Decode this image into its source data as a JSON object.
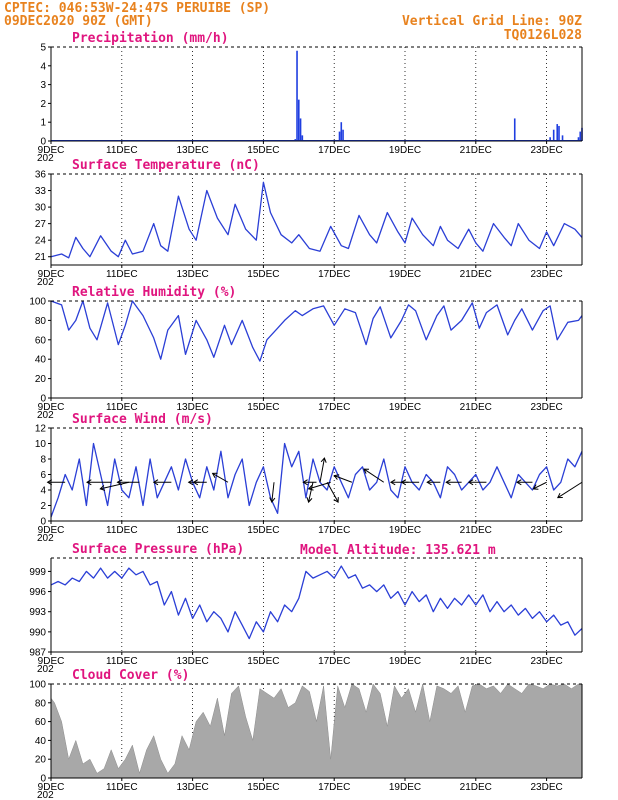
{
  "header": {
    "station": "CPTEC:   046:53W-24:47S  PERUIBE (SP)",
    "run": "09DEC2020 90Z (GMT)",
    "grid_line": "Vertical Grid Line: 90Z",
    "code": "TQ0126L028",
    "model_altitude": "Model Altitude: 135.621  m"
  },
  "x_ticks": [
    "9DEC",
    "11DEC",
    "13DEC",
    "15DEC",
    "17DEC",
    "19DEC",
    "21DEC",
    "23DEC"
  ],
  "year_stub": "202",
  "colors": {
    "line": "#2b3fd6",
    "bar": "#1f3ee0",
    "cloud": "#a8a8a8",
    "title": "#e0157f",
    "header": "#e8821e"
  },
  "chart_data": [
    {
      "id": "precip",
      "type": "bar",
      "title": "Precipitation (mm/h)",
      "ylim": [
        0,
        5
      ],
      "yticks": [
        "0",
        "1",
        "2",
        "3",
        "4",
        "5"
      ],
      "x_unit": "days since 9DEC 00Z",
      "bars": [
        [
          0.8,
          0.05
        ],
        [
          1.5,
          0.05
        ],
        [
          2.4,
          0.05
        ],
        [
          3.2,
          0.05
        ],
        [
          4.1,
          0.05
        ],
        [
          5.0,
          0.05
        ],
        [
          6.0,
          0.05
        ],
        [
          6.9,
          0.1
        ],
        [
          6.95,
          4.8
        ],
        [
          7.0,
          2.2
        ],
        [
          7.05,
          1.2
        ],
        [
          7.1,
          0.3
        ],
        [
          8.15,
          0.5
        ],
        [
          8.2,
          1.0
        ],
        [
          8.25,
          0.6
        ],
        [
          9.5,
          0.05
        ],
        [
          10.5,
          0.05
        ],
        [
          12.2,
          0.05
        ],
        [
          13.05,
          0.05
        ],
        [
          13.1,
          1.2
        ],
        [
          13.5,
          0.05
        ],
        [
          14.1,
          0.2
        ],
        [
          14.2,
          0.6
        ],
        [
          14.3,
          0.9
        ],
        [
          14.35,
          0.8
        ],
        [
          14.45,
          0.3
        ],
        [
          14.7,
          0.05
        ],
        [
          14.8,
          0.05
        ],
        [
          14.9,
          0.2
        ],
        [
          14.95,
          0.5
        ],
        [
          15.0,
          0.7
        ]
      ]
    },
    {
      "id": "temp",
      "type": "line",
      "title": "Surface Temperature (nC)",
      "ylim": [
        19.5,
        36
      ],
      "yticks": [
        "21",
        "24",
        "27",
        "30",
        "33",
        "36"
      ],
      "x": [
        0,
        0.3,
        0.5,
        0.7,
        0.9,
        1.1,
        1.4,
        1.7,
        1.9,
        2.1,
        2.3,
        2.6,
        2.9,
        3.1,
        3.3,
        3.6,
        3.9,
        4.1,
        4.4,
        4.7,
        5.0,
        5.2,
        5.5,
        5.8,
        6.0,
        6.2,
        6.5,
        6.8,
        7.0,
        7.3,
        7.6,
        7.9,
        8.2,
        8.4,
        8.7,
        9.0,
        9.2,
        9.5,
        9.8,
        10.0,
        10.2,
        10.5,
        10.8,
        11.0,
        11.2,
        11.5,
        11.8,
        12.0,
        12.2,
        12.5,
        12.8,
        13.0,
        13.2,
        13.5,
        13.8,
        14.0,
        14.2,
        14.5,
        14.8,
        15.0
      ],
      "y": [
        21,
        21.5,
        20.8,
        24.5,
        22.5,
        21,
        24.8,
        22,
        21,
        24,
        21.5,
        22,
        27,
        23,
        22,
        32,
        26,
        24,
        33,
        28,
        25,
        30.5,
        26,
        24,
        34.5,
        29,
        25,
        23.5,
        25,
        22.5,
        22,
        26.5,
        23,
        22.5,
        28.5,
        25,
        23.5,
        29,
        25.5,
        23.5,
        28,
        25,
        23,
        26.5,
        24,
        22.5,
        26,
        23.5,
        22,
        27,
        24.5,
        23,
        27,
        24,
        22.5,
        25.5,
        23,
        27,
        26,
        24.5
      ]
    },
    {
      "id": "rh",
      "type": "line",
      "title": "Relative Humidity (%)",
      "ylim": [
        0,
        100
      ],
      "yticks": [
        "0",
        "20",
        "40",
        "60",
        "80",
        "100"
      ],
      "x": [
        0,
        0.3,
        0.5,
        0.7,
        0.9,
        1.1,
        1.3,
        1.6,
        1.9,
        2.1,
        2.3,
        2.6,
        2.9,
        3.1,
        3.3,
        3.6,
        3.8,
        4.1,
        4.4,
        4.6,
        4.9,
        5.1,
        5.4,
        5.7,
        5.9,
        6.1,
        6.4,
        6.6,
        6.9,
        7.1,
        7.4,
        7.7,
        8.0,
        8.3,
        8.6,
        8.9,
        9.1,
        9.3,
        9.6,
        9.9,
        10.1,
        10.3,
        10.6,
        10.9,
        11.1,
        11.3,
        11.6,
        11.9,
        12.1,
        12.3,
        12.6,
        12.9,
        13.1,
        13.3,
        13.6,
        13.9,
        14.1,
        14.3,
        14.6,
        14.9,
        15.0
      ],
      "y": [
        100,
        96,
        70,
        80,
        100,
        72,
        60,
        98,
        55,
        75,
        100,
        85,
        62,
        40,
        70,
        85,
        45,
        80,
        60,
        42,
        75,
        55,
        80,
        52,
        38,
        60,
        72,
        80,
        90,
        85,
        92,
        95,
        75,
        92,
        88,
        55,
        82,
        94,
        62,
        80,
        96,
        90,
        60,
        85,
        95,
        70,
        80,
        98,
        72,
        88,
        96,
        65,
        80,
        92,
        70,
        90,
        95,
        60,
        78,
        80,
        85
      ]
    },
    {
      "id": "wind",
      "type": "line",
      "title": "Surface Wind (m/s)",
      "ylim": [
        0,
        12
      ],
      "yticks": [
        "0",
        "2",
        "4",
        "6",
        "8",
        "10",
        "12"
      ],
      "x": [
        0,
        0.2,
        0.4,
        0.6,
        0.8,
        1.0,
        1.2,
        1.4,
        1.6,
        1.8,
        2.0,
        2.2,
        2.4,
        2.6,
        2.8,
        3.0,
        3.2,
        3.4,
        3.6,
        3.8,
        4.0,
        4.2,
        4.4,
        4.6,
        4.8,
        5.0,
        5.2,
        5.4,
        5.6,
        5.8,
        6.0,
        6.2,
        6.4,
        6.6,
        6.8,
        7.0,
        7.2,
        7.4,
        7.6,
        7.8,
        8.0,
        8.2,
        8.4,
        8.6,
        8.8,
        9.0,
        9.2,
        9.4,
        9.6,
        9.8,
        10.0,
        10.2,
        10.4,
        10.6,
        10.8,
        11.0,
        11.2,
        11.4,
        11.6,
        11.8,
        12.0,
        12.2,
        12.4,
        12.6,
        12.8,
        13.0,
        13.2,
        13.4,
        13.6,
        13.8,
        14.0,
        14.2,
        14.4,
        14.6,
        14.8,
        15.0
      ],
      "y": [
        0.5,
        3,
        6,
        4,
        8,
        2,
        10,
        6,
        2,
        8,
        4,
        3,
        7,
        2,
        8,
        3,
        5,
        7,
        4,
        8,
        5,
        3,
        7,
        4,
        9,
        3,
        6,
        8,
        2,
        5,
        7,
        3,
        1,
        10,
        7,
        9,
        3,
        8,
        5,
        4,
        7,
        5,
        3,
        6,
        7,
        4,
        5,
        8,
        4,
        3,
        7,
        5,
        4,
        6,
        5,
        3,
        7,
        6,
        4,
        5,
        6,
        4,
        5,
        7,
        5,
        3,
        6,
        5,
        4,
        6,
        7,
        4,
        5,
        8,
        7,
        9
      ],
      "vectors": [
        [
          0.4,
          -0.8,
          0
        ],
        [
          1.7,
          -1.1,
          0
        ],
        [
          2.2,
          -1.3,
          -0.3
        ],
        [
          2.5,
          -1.0,
          0
        ],
        [
          3.4,
          -0.8,
          0
        ],
        [
          4.2,
          -0.5,
          0
        ],
        [
          4.4,
          -0.6,
          0
        ],
        [
          5.0,
          -0.7,
          0.4
        ],
        [
          6.3,
          -0.1,
          -0.9
        ],
        [
          7.4,
          -0.2,
          -0.9
        ],
        [
          7.5,
          -0.6,
          0
        ],
        [
          7.6,
          0.2,
          1.1
        ],
        [
          7.8,
          0.5,
          -0.9
        ],
        [
          7.9,
          -1.0,
          -0.3
        ],
        [
          8.5,
          -0.8,
          0.3
        ],
        [
          9.4,
          -0.9,
          0.6
        ],
        [
          10.1,
          -0.8,
          0
        ],
        [
          10.4,
          -0.8,
          0
        ],
        [
          11.0,
          -0.6,
          0
        ],
        [
          11.6,
          -0.7,
          0
        ],
        [
          12.3,
          -0.8,
          0
        ],
        [
          13.6,
          -0.7,
          0
        ],
        [
          14.0,
          -0.6,
          -0.3
        ],
        [
          15.0,
          -1.1,
          -0.7
        ]
      ]
    },
    {
      "id": "pres",
      "type": "line",
      "title": "Surface Pressure (hPa)",
      "ylim": [
        987,
        1001
      ],
      "yticks": [
        "987",
        "990",
        "993",
        "996",
        "999"
      ],
      "x": [
        0,
        0.2,
        0.4,
        0.6,
        0.8,
        1.0,
        1.2,
        1.4,
        1.6,
        1.8,
        2.0,
        2.2,
        2.4,
        2.6,
        2.8,
        3.0,
        3.2,
        3.4,
        3.6,
        3.8,
        4.0,
        4.2,
        4.4,
        4.6,
        4.8,
        5.0,
        5.2,
        5.4,
        5.6,
        5.8,
        6.0,
        6.2,
        6.4,
        6.6,
        6.8,
        7.0,
        7.2,
        7.4,
        7.6,
        7.8,
        8.0,
        8.2,
        8.4,
        8.6,
        8.8,
        9.0,
        9.2,
        9.4,
        9.6,
        9.8,
        10.0,
        10.2,
        10.4,
        10.6,
        10.8,
        11.0,
        11.2,
        11.4,
        11.6,
        11.8,
        12.0,
        12.2,
        12.4,
        12.6,
        12.8,
        13.0,
        13.2,
        13.4,
        13.6,
        13.8,
        14.0,
        14.2,
        14.4,
        14.6,
        14.8,
        15.0
      ],
      "y": [
        997,
        997.5,
        997,
        998,
        997.5,
        999,
        998,
        999.5,
        998,
        999,
        998,
        999.5,
        998.5,
        999,
        997,
        997.5,
        994,
        996,
        992.5,
        995,
        992,
        994,
        991.5,
        993,
        992,
        990,
        993,
        991,
        989,
        991.5,
        990,
        993,
        991.5,
        994,
        993,
        995,
        999,
        998,
        998.5,
        999,
        998,
        999.8,
        998,
        998.5,
        996.5,
        997,
        996,
        997,
        995,
        996,
        994,
        996,
        994.5,
        995.5,
        993,
        995,
        993.5,
        995,
        994,
        995.5,
        994,
        995.5,
        993,
        994.5,
        993,
        994,
        992.5,
        993.5,
        992,
        993,
        991.5,
        992.5,
        991,
        991.5,
        989.5,
        990.5
      ]
    },
    {
      "id": "cloud",
      "type": "area",
      "title": "Cloud Cover (%)",
      "ylim": [
        0,
        100
      ],
      "yticks": [
        "0",
        "20",
        "40",
        "60",
        "80",
        "100"
      ],
      "x": [
        0,
        0.1,
        0.3,
        0.5,
        0.7,
        0.9,
        1.1,
        1.3,
        1.5,
        1.7,
        1.9,
        2.1,
        2.3,
        2.5,
        2.7,
        2.9,
        3.1,
        3.3,
        3.5,
        3.7,
        3.9,
        4.1,
        4.3,
        4.5,
        4.7,
        4.9,
        5.1,
        5.3,
        5.5,
        5.7,
        5.9,
        6.1,
        6.3,
        6.5,
        6.7,
        6.9,
        7.1,
        7.3,
        7.5,
        7.7,
        7.9,
        8.1,
        8.3,
        8.5,
        8.7,
        8.9,
        9.1,
        9.3,
        9.5,
        9.7,
        9.9,
        10.1,
        10.3,
        10.5,
        10.7,
        10.9,
        11.1,
        11.3,
        11.5,
        11.7,
        11.9,
        12.1,
        12.3,
        12.5,
        12.7,
        12.9,
        13.1,
        13.3,
        13.5,
        13.7,
        13.9,
        14.1,
        14.3,
        14.5,
        14.7,
        14.9,
        15.0
      ],
      "y": [
        85,
        80,
        60,
        20,
        40,
        15,
        20,
        5,
        10,
        30,
        10,
        20,
        35,
        5,
        30,
        45,
        20,
        5,
        15,
        45,
        30,
        60,
        70,
        55,
        85,
        45,
        90,
        98,
        65,
        40,
        95,
        90,
        85,
        95,
        75,
        80,
        98,
        92,
        60,
        98,
        20,
        98,
        75,
        100,
        95,
        70,
        100,
        90,
        55,
        98,
        85,
        95,
        70,
        100,
        60,
        98,
        95,
        90,
        98,
        70,
        98,
        100,
        95,
        98,
        90,
        100,
        95,
        90,
        100,
        98,
        95,
        100,
        98,
        100,
        95,
        100,
        100
      ]
    }
  ]
}
